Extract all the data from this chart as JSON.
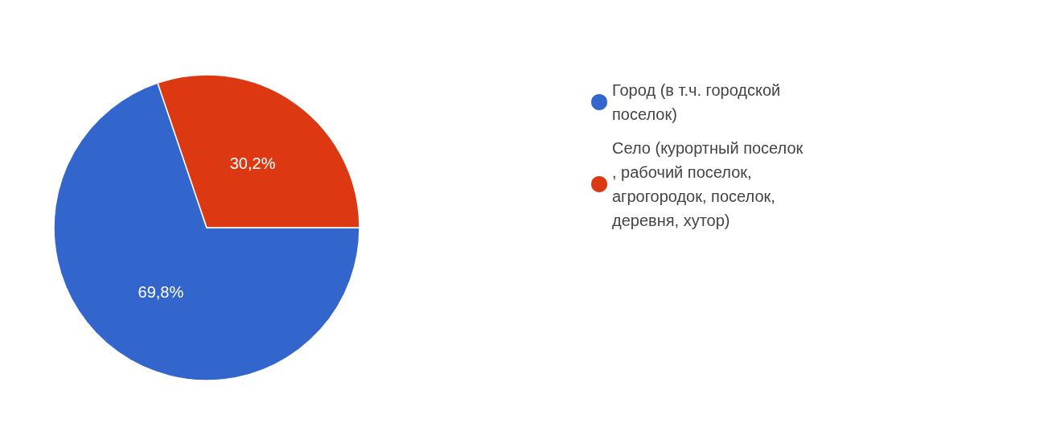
{
  "chart_data": {
    "type": "pie",
    "categories": [
      "Город (в т.ч. городской поселок)",
      "Село (курортный поселок, рабочий поселок, агрогородок, поселок, деревня, хутор)"
    ],
    "values": [
      69.8,
      30.2
    ],
    "colors": [
      "#3366cc",
      "#dc3912"
    ],
    "value_labels": [
      "69,8%",
      "30,2%"
    ],
    "legend": "right"
  }
}
